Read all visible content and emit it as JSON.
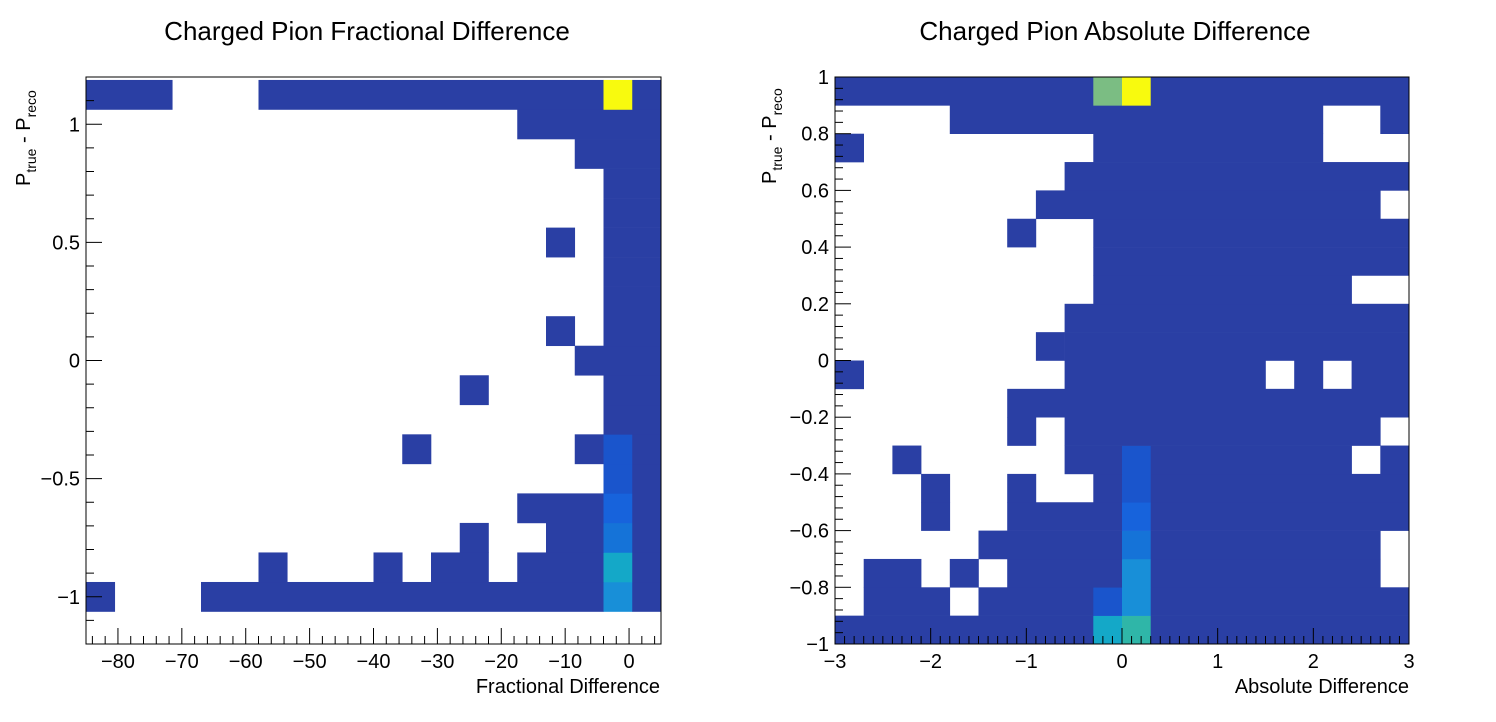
{
  "chart_data": [
    {
      "type": "heatmap",
      "title": "Charged Pion Fractional Difference",
      "xlabel": "Fractional Difference",
      "ylabel": "P_true - P_reco",
      "ylabel_main": "P",
      "ylabel_sub1": "true",
      "ylabel_sub2": "reco",
      "xlim": [
        -85,
        5
      ],
      "ylim": [
        -1.2,
        1.2
      ],
      "xticks": [
        -80,
        -70,
        -60,
        -50,
        -40,
        -30,
        -20,
        -10,
        0
      ],
      "yticks": [
        -1,
        -0.5,
        0,
        0.5,
        1
      ],
      "cell_width": 4.5,
      "cell_height": 0.125,
      "colors": {
        "1": "#2a3fa4",
        "2": "#1a55cc",
        "3": "#1763dc",
        "4": "#1573d8",
        "5": "#188fd8",
        "6": "#14a8c8",
        "7": "#f8fa0e"
      },
      "cells": [
        {
          "x0": -85,
          "y0": -1.0625,
          "w": 4.5,
          "v": 1
        },
        {
          "x0": -67,
          "y0": -1.0625,
          "w": 63,
          "v": 1
        },
        {
          "x0": -4,
          "y0": -1.0625,
          "w": 4.5,
          "v": 5
        },
        {
          "x0": 0.5,
          "y0": -1.0625,
          "w": 4.5,
          "v": 1
        },
        {
          "x0": -58,
          "y0": -0.9375,
          "w": 4.5,
          "v": 1
        },
        {
          "x0": -40,
          "y0": -0.9375,
          "w": 4.5,
          "v": 1
        },
        {
          "x0": -31,
          "y0": -0.9375,
          "w": 9,
          "v": 1
        },
        {
          "x0": -17.5,
          "y0": -0.9375,
          "w": 13.5,
          "v": 1
        },
        {
          "x0": -4,
          "y0": -0.9375,
          "w": 4.5,
          "v": 6
        },
        {
          "x0": 0.5,
          "y0": -0.9375,
          "w": 4.5,
          "v": 1
        },
        {
          "x0": -26.5,
          "y0": -0.8125,
          "w": 4.5,
          "v": 1
        },
        {
          "x0": -13,
          "y0": -0.8125,
          "w": 9,
          "v": 1
        },
        {
          "x0": -4,
          "y0": -0.8125,
          "w": 4.5,
          "v": 4
        },
        {
          "x0": 0.5,
          "y0": -0.8125,
          "w": 4.5,
          "v": 1
        },
        {
          "x0": -17.5,
          "y0": -0.6875,
          "w": 13.5,
          "v": 1
        },
        {
          "x0": -4,
          "y0": -0.6875,
          "w": 4.5,
          "v": 3
        },
        {
          "x0": 0.5,
          "y0": -0.6875,
          "w": 4.5,
          "v": 1
        },
        {
          "x0": -4,
          "y0": -0.5625,
          "w": 4.5,
          "v": 2
        },
        {
          "x0": 0.5,
          "y0": -0.5625,
          "w": 4.5,
          "v": 1
        },
        {
          "x0": -35.5,
          "y0": -0.4375,
          "w": 4.5,
          "v": 1
        },
        {
          "x0": -8.5,
          "y0": -0.4375,
          "w": 4.5,
          "v": 1
        },
        {
          "x0": -4,
          "y0": -0.4375,
          "w": 4.5,
          "v": 2
        },
        {
          "x0": 0.5,
          "y0": -0.4375,
          "w": 4.5,
          "v": 1
        },
        {
          "x0": -4,
          "y0": -0.3125,
          "w": 9,
          "v": 1
        },
        {
          "x0": -26.5,
          "y0": -0.1875,
          "w": 4.5,
          "v": 1
        },
        {
          "x0": -4,
          "y0": -0.1875,
          "w": 9,
          "v": 1
        },
        {
          "x0": -8.5,
          "y0": -0.0625,
          "w": 13.5,
          "v": 1
        },
        {
          "x0": -13,
          "y0": 0.0625,
          "w": 4.5,
          "v": 1
        },
        {
          "x0": -4,
          "y0": 0.0625,
          "w": 9,
          "v": 1
        },
        {
          "x0": -4,
          "y0": 0.1875,
          "w": 9,
          "v": 1
        },
        {
          "x0": -4,
          "y0": 0.3125,
          "w": 9,
          "v": 1
        },
        {
          "x0": -13,
          "y0": 0.4375,
          "w": 4.5,
          "v": 1
        },
        {
          "x0": -4,
          "y0": 0.4375,
          "w": 9,
          "v": 1
        },
        {
          "x0": -4,
          "y0": 0.5625,
          "w": 9,
          "v": 1
        },
        {
          "x0": -4,
          "y0": 0.6875,
          "w": 9,
          "v": 1
        },
        {
          "x0": -8.5,
          "y0": 0.8125,
          "w": 13.5,
          "v": 1
        },
        {
          "x0": -17.5,
          "y0": 0.9375,
          "w": 22.5,
          "v": 1
        },
        {
          "x0": -85,
          "y0": 1.0625,
          "w": 13.5,
          "v": 1
        },
        {
          "x0": -58,
          "y0": 1.0625,
          "w": 54,
          "v": 1
        },
        {
          "x0": -4,
          "y0": 1.0625,
          "w": 4.5,
          "v": 7
        },
        {
          "x0": 0.5,
          "y0": 1.0625,
          "w": 4.5,
          "v": 1
        }
      ]
    },
    {
      "type": "heatmap",
      "title": "Charged Pion Absolute Difference",
      "xlabel": "Absolute Difference",
      "ylabel": "P_true - P_reco",
      "ylabel_main": "P",
      "ylabel_sub1": "true",
      "ylabel_sub2": "reco",
      "xlim": [
        -3,
        3
      ],
      "ylim": [
        -1,
        1
      ],
      "xticks": [
        -3,
        -2,
        -1,
        0,
        1,
        2,
        3
      ],
      "yticks": [
        -1,
        -0.8,
        -0.6,
        -0.4,
        -0.2,
        0,
        0.2,
        0.4,
        0.6,
        0.8,
        1
      ],
      "cell_width": 0.3,
      "cell_height": 0.1,
      "colors": {
        "1": "#2a3fa4",
        "2": "#1a55cc",
        "3": "#1763dc",
        "4": "#1573d8",
        "5": "#188fd8",
        "6": "#14a8c8",
        "7": "#f8fa0e",
        "8": "#7bbd83",
        "9": "#2fb6a8"
      },
      "cells": [
        {
          "x0": -3,
          "y0": -1,
          "w": 2.7,
          "v": 1
        },
        {
          "x0": -0.3,
          "y0": -1,
          "w": 0.3,
          "v": 6
        },
        {
          "x0": 0,
          "y0": -1,
          "w": 0.3,
          "v": 9
        },
        {
          "x0": 0.3,
          "y0": -1,
          "w": 2.7,
          "v": 1
        },
        {
          "x0": -2.7,
          "y0": -0.9,
          "w": 0.9,
          "v": 1
        },
        {
          "x0": -1.5,
          "y0": -0.9,
          "w": 1.2,
          "v": 1
        },
        {
          "x0": -0.3,
          "y0": -0.9,
          "w": 0.3,
          "v": 2
        },
        {
          "x0": 0,
          "y0": -0.9,
          "w": 0.3,
          "v": 5
        },
        {
          "x0": 0.3,
          "y0": -0.9,
          "w": 2.7,
          "v": 1
        },
        {
          "x0": -2.7,
          "y0": -0.8,
          "w": 0.6,
          "v": 1
        },
        {
          "x0": -1.8,
          "y0": -0.8,
          "w": 0.3,
          "v": 1
        },
        {
          "x0": -1.2,
          "y0": -0.8,
          "w": 1.2,
          "v": 1
        },
        {
          "x0": 0,
          "y0": -0.8,
          "w": 0.3,
          "v": 5
        },
        {
          "x0": 0.3,
          "y0": -0.8,
          "w": 2.4,
          "v": 1
        },
        {
          "x0": -1.5,
          "y0": -0.7,
          "w": 1.5,
          "v": 1
        },
        {
          "x0": 0,
          "y0": -0.7,
          "w": 0.3,
          "v": 4
        },
        {
          "x0": 0.3,
          "y0": -0.7,
          "w": 2.4,
          "v": 1
        },
        {
          "x0": -2.1,
          "y0": -0.6,
          "w": 0.3,
          "v": 1
        },
        {
          "x0": -1.2,
          "y0": -0.6,
          "w": 1.2,
          "v": 1
        },
        {
          "x0": 0,
          "y0": -0.6,
          "w": 0.3,
          "v": 3
        },
        {
          "x0": 0.3,
          "y0": -0.6,
          "w": 2.7,
          "v": 1
        },
        {
          "x0": -2.1,
          "y0": -0.5,
          "w": 0.3,
          "v": 1
        },
        {
          "x0": -1.2,
          "y0": -0.5,
          "w": 0.3,
          "v": 1
        },
        {
          "x0": -0.3,
          "y0": -0.5,
          "w": 0.3,
          "v": 1
        },
        {
          "x0": 0,
          "y0": -0.5,
          "w": 0.3,
          "v": 2
        },
        {
          "x0": 0.3,
          "y0": -0.5,
          "w": 2.7,
          "v": 1
        },
        {
          "x0": -2.4,
          "y0": -0.4,
          "w": 0.3,
          "v": 1
        },
        {
          "x0": -0.6,
          "y0": -0.4,
          "w": 0.6,
          "v": 1
        },
        {
          "x0": 0,
          "y0": -0.4,
          "w": 0.3,
          "v": 2
        },
        {
          "x0": 0.3,
          "y0": -0.4,
          "w": 2.1,
          "v": 1
        },
        {
          "x0": 2.7,
          "y0": -0.4,
          "w": 0.3,
          "v": 1
        },
        {
          "x0": -1.2,
          "y0": -0.3,
          "w": 0.3,
          "v": 1
        },
        {
          "x0": -0.6,
          "y0": -0.3,
          "w": 3.3,
          "v": 1
        },
        {
          "x0": -1.2,
          "y0": -0.2,
          "w": 4.2,
          "v": 1
        },
        {
          "x0": -3,
          "y0": -0.1,
          "w": 0.3,
          "v": 1
        },
        {
          "x0": -0.6,
          "y0": -0.1,
          "w": 2.1,
          "v": 1
        },
        {
          "x0": 1.8,
          "y0": -0.1,
          "w": 0.3,
          "v": 1
        },
        {
          "x0": 2.4,
          "y0": -0.1,
          "w": 0.6,
          "v": 1
        },
        {
          "x0": -0.9,
          "y0": 0,
          "w": 0.3,
          "v": 1
        },
        {
          "x0": -0.6,
          "y0": 0,
          "w": 3.6,
          "v": 1
        },
        {
          "x0": -0.6,
          "y0": 0.1,
          "w": 3.6,
          "v": 1
        },
        {
          "x0": -0.3,
          "y0": 0.2,
          "w": 2.7,
          "v": 1
        },
        {
          "x0": -0.3,
          "y0": 0.3,
          "w": 3.3,
          "v": 1
        },
        {
          "x0": -1.2,
          "y0": 0.4,
          "w": 0.3,
          "v": 1
        },
        {
          "x0": -0.3,
          "y0": 0.4,
          "w": 3.3,
          "v": 1
        },
        {
          "x0": -0.9,
          "y0": 0.5,
          "w": 3.6,
          "v": 1
        },
        {
          "x0": -0.6,
          "y0": 0.6,
          "w": 3.6,
          "v": 1
        },
        {
          "x0": -3,
          "y0": 0.7,
          "w": 0.3,
          "v": 1
        },
        {
          "x0": -0.3,
          "y0": 0.7,
          "w": 2.4,
          "v": 1
        },
        {
          "x0": -1.8,
          "y0": 0.8,
          "w": 3.9,
          "v": 1
        },
        {
          "x0": 2.7,
          "y0": 0.8,
          "w": 0.3,
          "v": 1
        },
        {
          "x0": -3,
          "y0": 0.9,
          "w": 2.7,
          "v": 1
        },
        {
          "x0": -0.3,
          "y0": 0.9,
          "w": 0.3,
          "v": 8
        },
        {
          "x0": 0,
          "y0": 0.9,
          "w": 0.3,
          "v": 7
        },
        {
          "x0": 0.3,
          "y0": 0.9,
          "w": 2.7,
          "v": 1
        }
      ]
    }
  ]
}
